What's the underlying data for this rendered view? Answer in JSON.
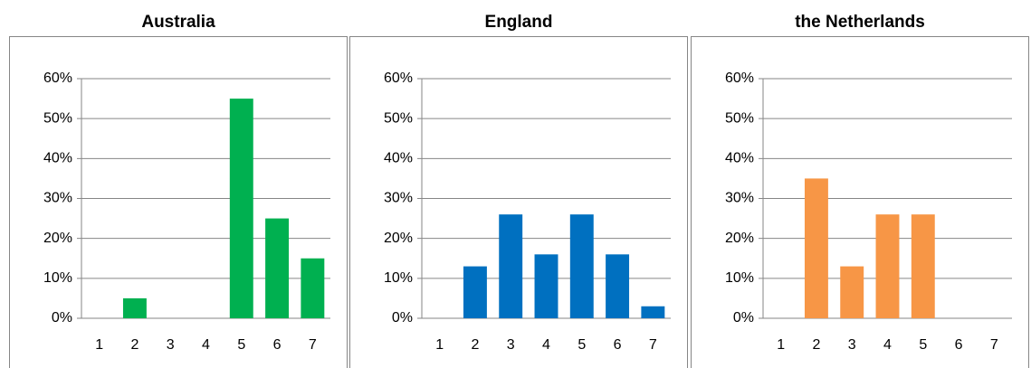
{
  "chart_data": [
    {
      "type": "bar",
      "title": "Australia",
      "categories": [
        "1",
        "2",
        "3",
        "4",
        "5",
        "6",
        "7"
      ],
      "values": [
        0,
        5,
        0,
        0,
        55,
        25,
        15
      ],
      "color": "#00b050",
      "ylim": [
        0,
        60
      ],
      "yticks": [
        {
          "value": 0,
          "label": "0%"
        },
        {
          "value": 10,
          "label": "10%"
        },
        {
          "value": 20,
          "label": "20%"
        },
        {
          "value": 30,
          "label": "30%"
        },
        {
          "value": 40,
          "label": "40%"
        },
        {
          "value": 50,
          "label": "50%"
        },
        {
          "value": 60,
          "label": "60%"
        }
      ],
      "grid": true
    },
    {
      "type": "bar",
      "title": "England",
      "categories": [
        "1",
        "2",
        "3",
        "4",
        "5",
        "6",
        "7"
      ],
      "values": [
        0,
        13,
        26,
        16,
        26,
        16,
        3
      ],
      "color": "#0070c0",
      "ylim": [
        0,
        60
      ],
      "yticks": [
        {
          "value": 0,
          "label": "0%"
        },
        {
          "value": 10,
          "label": "10%"
        },
        {
          "value": 20,
          "label": "20%"
        },
        {
          "value": 30,
          "label": "30%"
        },
        {
          "value": 40,
          "label": "40%"
        },
        {
          "value": 50,
          "label": "50%"
        },
        {
          "value": 60,
          "label": "60%"
        }
      ],
      "grid": true
    },
    {
      "type": "bar",
      "title": "the Netherlands",
      "categories": [
        "1",
        "2",
        "3",
        "4",
        "5",
        "6",
        "7"
      ],
      "values": [
        0,
        35,
        13,
        26,
        26,
        0,
        0
      ],
      "color": "#f79646",
      "ylim": [
        0,
        60
      ],
      "yticks": [
        {
          "value": 0,
          "label": "0%"
        },
        {
          "value": 10,
          "label": "10%"
        },
        {
          "value": 20,
          "label": "20%"
        },
        {
          "value": 30,
          "label": "30%"
        },
        {
          "value": 40,
          "label": "40%"
        },
        {
          "value": 50,
          "label": "50%"
        },
        {
          "value": 60,
          "label": "60%"
        }
      ],
      "grid": true
    }
  ]
}
